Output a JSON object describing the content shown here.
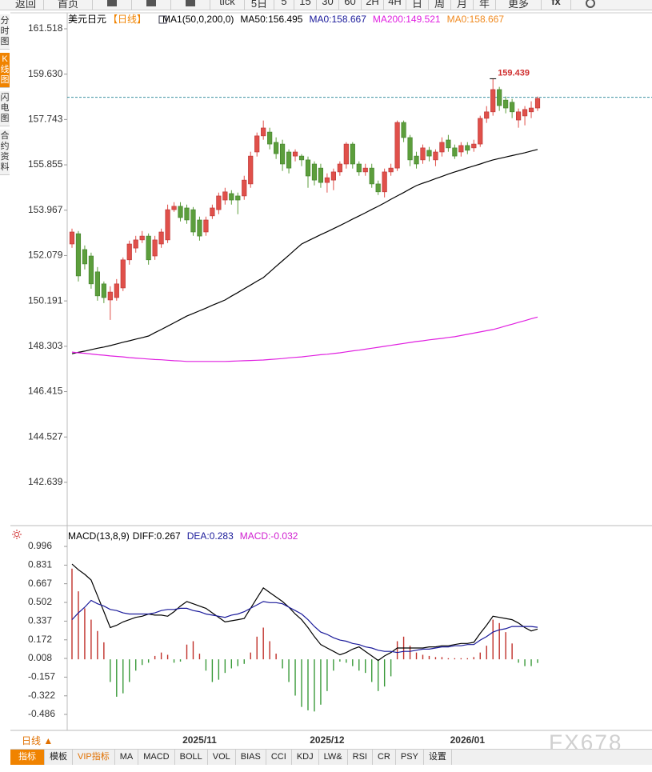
{
  "toolbar": {
    "items": [
      "返回",
      "首页",
      "tick",
      "5日",
      "5",
      "15",
      "30",
      "60",
      "2H",
      "4H",
      "日",
      "周",
      "月",
      "年",
      "更多",
      "fx"
    ]
  },
  "sidebar": {
    "tabs": [
      "分时图",
      "K线图",
      "闪电图",
      "合约资料"
    ],
    "active": 1
  },
  "chart_data": [
    {
      "type": "candlestick",
      "title": "美元日元",
      "period": "【日线】",
      "indicator": "MA1(50,0,200,0)",
      "period_label": "日线 ▲",
      "categories": [
        null,
        null,
        null,
        null,
        null,
        null,
        null,
        null,
        null,
        null,
        null,
        null,
        null,
        null,
        null,
        null,
        null,
        null,
        null,
        null,
        "2025/11",
        null,
        null,
        null,
        null,
        null,
        null,
        null,
        null,
        null,
        null,
        null,
        null,
        null,
        null,
        null,
        null,
        null,
        null,
        null,
        "2025/12",
        null,
        null,
        null,
        null,
        null,
        null,
        null,
        null,
        null,
        null,
        null,
        null,
        null,
        null,
        null,
        null,
        null,
        null,
        null,
        null,
        null,
        "2026/01",
        null,
        null,
        null,
        null,
        null,
        null,
        null,
        null,
        null,
        null,
        null
      ],
      "open": [
        152.56,
        152.99,
        152.33,
        152.06,
        151.4,
        150.9,
        150.23,
        150.33,
        150.73,
        151.9,
        152.39,
        152.73,
        152.89,
        152.06,
        152.56,
        152.73,
        153.99,
        154.13,
        154.06,
        153.99,
        153.56,
        153.06,
        153.73,
        153.99,
        154.39,
        154.66,
        154.56,
        154.56,
        155.06,
        156.39,
        157.06,
        157.22,
        156.79,
        156.72,
        156.39,
        156.22,
        156.22,
        156.06,
        155.89,
        155.72,
        155.12,
        155.22,
        155.56,
        155.89,
        156.72,
        155.89,
        155.56,
        155.72,
        155.06,
        154.73,
        155.56,
        155.72,
        157.62,
        156.99,
        156.22,
        156.06,
        156.46,
        156.06,
        156.39,
        156.89,
        156.56,
        156.39,
        156.66,
        156.56,
        156.72,
        157.79,
        158.06,
        158.99,
        158.55,
        158.46,
        157.72,
        157.89,
        158.06,
        158.22
      ],
      "high": [
        153.2,
        153.1,
        152.5,
        152.2,
        151.6,
        151.0,
        150.8,
        151.1,
        152.0,
        152.7,
        152.9,
        153.1,
        153.0,
        152.9,
        153.2,
        154.2,
        154.3,
        154.3,
        154.2,
        154.1,
        153.7,
        153.7,
        154.2,
        154.7,
        154.9,
        154.8,
        154.7,
        155.4,
        156.4,
        157.2,
        157.7,
        157.4,
        157.0,
        156.9,
        156.5,
        156.5,
        156.3,
        156.2,
        156.0,
        155.9,
        155.5,
        155.7,
        156.0,
        156.8,
        156.8,
        156.0,
        155.9,
        155.9,
        155.2,
        155.7,
        155.9,
        157.7,
        157.7,
        157.1,
        156.4,
        156.7,
        156.6,
        156.5,
        157.0,
        157.1,
        156.7,
        156.8,
        156.8,
        156.9,
        157.9,
        158.3,
        159.439,
        159.1,
        158.7,
        158.6,
        158.2,
        158.3,
        158.5,
        158.7
      ],
      "low": [
        152.4,
        151.0,
        151.5,
        150.7,
        150.2,
        150.1,
        149.4,
        150.2,
        150.6,
        151.7,
        152.2,
        152.6,
        151.7,
        151.9,
        152.4,
        152.6,
        153.9,
        153.5,
        153.4,
        152.9,
        152.7,
        152.9,
        153.6,
        153.8,
        154.2,
        154.2,
        153.8,
        154.4,
        154.9,
        156.2,
        156.9,
        156.5,
        156.1,
        155.6,
        155.5,
        156.0,
        155.8,
        154.9,
        155.0,
        154.9,
        154.7,
        154.8,
        155.4,
        155.7,
        155.7,
        155.4,
        155.4,
        154.9,
        154.6,
        154.5,
        155.4,
        155.6,
        156.8,
        155.8,
        155.7,
        155.9,
        156.0,
        155.8,
        156.2,
        156.4,
        156.1,
        156.2,
        156.3,
        156.4,
        156.6,
        157.6,
        157.9,
        158.1,
        158.0,
        157.8,
        157.4,
        157.5,
        157.8,
        158.1
      ],
      "close": [
        153.06,
        151.23,
        151.73,
        150.9,
        150.4,
        150.33,
        150.56,
        150.9,
        151.9,
        152.56,
        152.73,
        152.89,
        151.9,
        152.73,
        153.06,
        153.99,
        154.13,
        153.66,
        153.56,
        153.06,
        152.89,
        153.56,
        154.06,
        154.56,
        154.73,
        154.39,
        154.39,
        155.22,
        156.22,
        157.06,
        157.39,
        156.72,
        156.32,
        155.89,
        155.72,
        156.39,
        156.06,
        155.39,
        155.22,
        155.12,
        155.32,
        155.56,
        155.89,
        156.72,
        155.89,
        155.56,
        155.72,
        155.06,
        154.73,
        155.56,
        155.72,
        157.62,
        156.99,
        156.06,
        155.89,
        156.56,
        156.22,
        156.39,
        156.79,
        156.56,
        156.22,
        156.66,
        156.46,
        156.72,
        157.79,
        158.06,
        158.99,
        158.32,
        158.22,
        158.06,
        158.06,
        158.16,
        158.22,
        158.62
      ],
      "up_color": "#e0504a",
      "down_color": "#5c9e3c",
      "max_color": "#d03030",
      "series": [
        {
          "name": "MA50:156.495",
          "color": "#000000",
          "values": [
            147.99,
            148.05,
            148.1,
            148.16,
            148.22,
            148.27,
            148.33,
            148.4,
            148.47,
            148.53,
            148.6,
            148.66,
            148.73,
            148.87,
            149.0,
            149.14,
            149.28,
            149.42,
            149.56,
            149.67,
            149.78,
            149.89,
            150.01,
            150.12,
            150.23,
            150.39,
            150.54,
            150.7,
            150.85,
            151.01,
            151.16,
            151.39,
            151.63,
            151.86,
            152.09,
            152.33,
            152.56,
            152.69,
            152.82,
            152.95,
            153.07,
            153.2,
            153.33,
            153.46,
            153.6,
            153.73,
            153.86,
            154.0,
            154.13,
            154.27,
            154.42,
            154.56,
            154.7,
            154.85,
            154.99,
            155.09,
            155.18,
            155.28,
            155.37,
            155.47,
            155.56,
            155.64,
            155.73,
            155.81,
            155.89,
            155.98,
            156.06,
            156.12,
            156.18,
            156.24,
            156.3,
            156.36,
            156.43,
            156.495
          ]
        },
        {
          "name": "MA0:158.667",
          "color": "#1a1a9a"
        },
        {
          "name": "MA200:149.521",
          "color": "#e020e0",
          "values": [
            148.06,
            148.03,
            148.01,
            147.98,
            147.95,
            147.93,
            147.9,
            147.88,
            147.86,
            147.83,
            147.81,
            147.79,
            147.77,
            147.75,
            147.74,
            147.72,
            147.7,
            147.69,
            147.67,
            147.67,
            147.67,
            147.67,
            147.67,
            147.67,
            147.67,
            147.68,
            147.69,
            147.7,
            147.71,
            147.72,
            147.73,
            147.75,
            147.77,
            147.79,
            147.82,
            147.84,
            147.86,
            147.89,
            147.92,
            147.95,
            147.97,
            148.0,
            148.03,
            148.07,
            148.11,
            148.14,
            148.18,
            148.22,
            148.26,
            148.3,
            148.34,
            148.38,
            148.42,
            148.46,
            148.5,
            148.53,
            148.57,
            148.6,
            148.63,
            148.67,
            148.7,
            148.75,
            148.8,
            148.85,
            148.9,
            148.95,
            149.0,
            149.07,
            149.15,
            149.22,
            149.3,
            149.37,
            149.45,
            149.521
          ]
        },
        {
          "name": "MA0:158.667",
          "color": "#f08a20"
        }
      ],
      "hline": {
        "value": 158.667,
        "color": "#3a90a0"
      },
      "ylim": [
        140.905,
        162.117
      ],
      "yticks": [
        161.518,
        {
          "value": 159.63,
          "label": "159.630"
        },
        157.743,
        155.855,
        153.967,
        152.079,
        150.191,
        148.303,
        146.415,
        144.527,
        142.639
      ],
      "grid": false
    },
    {
      "type": "macd",
      "title": "MACD(13,8,9)",
      "series": [
        {
          "name": "DIFF:0.267",
          "color": "#000000",
          "values": [
            0.84,
            0.79,
            0.75,
            0.7,
            0.56,
            0.42,
            0.28,
            0.3,
            0.33,
            0.35,
            0.37,
            0.38,
            0.4,
            0.39,
            0.39,
            0.38,
            0.42,
            0.47,
            0.51,
            0.49,
            0.47,
            0.45,
            0.41,
            0.37,
            0.33,
            0.34,
            0.35,
            0.36,
            0.45,
            0.54,
            0.63,
            0.59,
            0.55,
            0.51,
            0.46,
            0.4,
            0.35,
            0.28,
            0.2,
            0.13,
            0.1,
            0.07,
            0.04,
            0.06,
            0.09,
            0.11,
            0.07,
            0.03,
            -0.01,
            0.03,
            0.06,
            0.1,
            0.1,
            0.1,
            0.1,
            0.1,
            0.11,
            0.11,
            0.12,
            0.12,
            0.13,
            0.14,
            0.14,
            0.15,
            0.23,
            0.3,
            0.38,
            0.37,
            0.36,
            0.35,
            0.32,
            0.28,
            0.25,
            0.267
          ]
        },
        {
          "name": "DEA:0.283",
          "color": "#1a1a9a",
          "values": [
            0.35,
            0.41,
            0.46,
            0.52,
            0.49,
            0.47,
            0.44,
            0.43,
            0.41,
            0.4,
            0.4,
            0.4,
            0.4,
            0.41,
            0.43,
            0.44,
            0.44,
            0.45,
            0.45,
            0.43,
            0.42,
            0.4,
            0.39,
            0.38,
            0.37,
            0.39,
            0.4,
            0.42,
            0.45,
            0.48,
            0.51,
            0.5,
            0.5,
            0.49,
            0.46,
            0.43,
            0.4,
            0.35,
            0.29,
            0.24,
            0.22,
            0.19,
            0.17,
            0.16,
            0.14,
            0.13,
            0.11,
            0.1,
            0.08,
            0.07,
            0.07,
            0.06,
            0.07,
            0.07,
            0.08,
            0.09,
            0.09,
            0.1,
            0.11,
            0.11,
            0.12,
            0.12,
            0.13,
            0.13,
            0.17,
            0.2,
            0.24,
            0.26,
            0.27,
            0.29,
            0.29,
            0.29,
            0.29,
            0.283
          ]
        }
      ],
      "histogram": {
        "name": "MACD:-0.032",
        "color": "#d020d0",
        "up_color": "#c0302a",
        "down_color": "#3a9a3a",
        "values": [
          0.8,
          0.6,
          0.45,
          0.35,
          0.25,
          0.15,
          -0.2,
          -0.33,
          -0.3,
          -0.2,
          -0.1,
          -0.05,
          -0.03,
          0.03,
          0.06,
          0.04,
          -0.03,
          -0.02,
          0.13,
          0.16,
          0.05,
          -0.1,
          -0.2,
          -0.18,
          -0.12,
          -0.08,
          -0.06,
          -0.04,
          0.06,
          0.2,
          0.28,
          0.16,
          0.05,
          -0.08,
          -0.2,
          -0.32,
          -0.42,
          -0.45,
          -0.46,
          -0.4,
          -0.28,
          -0.1,
          -0.02,
          -0.03,
          -0.06,
          -0.1,
          -0.12,
          -0.2,
          -0.28,
          -0.24,
          -0.15,
          0.16,
          0.2,
          0.12,
          0.06,
          0.04,
          0.03,
          0.02,
          0.02,
          0.01,
          0.01,
          0.01,
          0.01,
          0.02,
          0.06,
          0.12,
          0.35,
          0.32,
          0.24,
          0.14,
          -0.03,
          -0.06,
          -0.06,
          -0.032
        ]
      },
      "ylim": [
        -0.62,
        1.088
      ],
      "yticks": [
        0.996,
        0.831,
        0.667,
        0.502,
        0.337,
        0.172,
        0.008,
        -0.157,
        -0.322,
        -0.486
      ],
      "grid": false
    }
  ],
  "bottom_bar": {
    "tabs": [
      "指标",
      "模板",
      "VIP指标",
      "MA",
      "MACD",
      "BOLL",
      "VOL",
      "BIAS",
      "CCI",
      "KDJ",
      "LW&",
      "RSI",
      "CR",
      "PSY",
      "设置"
    ],
    "active": 0,
    "highlight": 2
  },
  "watermark": "FX678"
}
